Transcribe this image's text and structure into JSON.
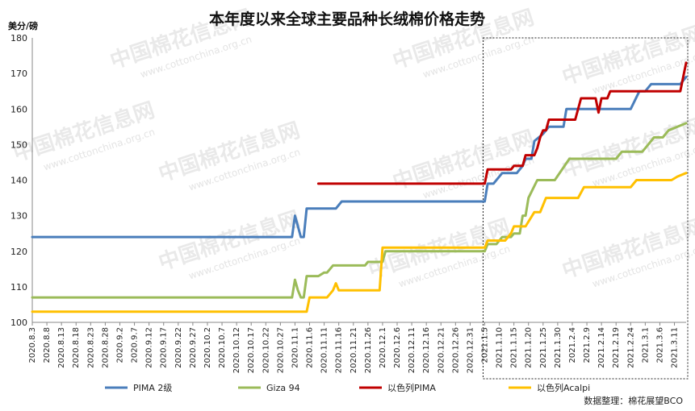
{
  "chart_data": {
    "type": "line",
    "title": "本年度以来全球主要品种长绒棉价格走势",
    "ylabel": "美分/磅",
    "ylim": [
      100,
      180
    ],
    "yticks": [
      100,
      110,
      120,
      130,
      140,
      150,
      160,
      170,
      180
    ],
    "xlabels": [
      "2020.8.3",
      "2020.8.8",
      "2020.8.13",
      "2020.8.18",
      "2020.8.23",
      "2020.8.28",
      "2020.9.2",
      "2020.9.7",
      "2020.9.12",
      "2020.9.17",
      "2020.9.22",
      "2020.9.27",
      "2020.10.2",
      "2020.10.7",
      "2020.10.12",
      "2020.10.17",
      "2020.10.22",
      "2020.10.27",
      "2020.11.1",
      "2020.11.6",
      "2020.11.11",
      "2020.11.16",
      "2020.11.21",
      "2020.11.26",
      "2020.12.1",
      "2020.12.6",
      "2020.12.11",
      "2020.12.16",
      "2020.12.21",
      "2020.12.26",
      "2020.12.31",
      "2021.1.5",
      "2021.1.10",
      "2021.1.15",
      "2021.1.20",
      "2021.1.25",
      "2021.1.30",
      "2021.2.4",
      "2021.2.9",
      "2021.2.14",
      "2021.2.19",
      "2021.2.24",
      "2021.3.1",
      "2021.3.6",
      "2021.3.11"
    ],
    "x_start": "2020.8.3",
    "x_end": "2021.3.15",
    "grid": false,
    "legend": "bottom",
    "highlight": {
      "from": "2021.1.5",
      "to": "2021.3.15",
      "style": "dotted box"
    },
    "series": [
      {
        "name": "PIMA 2级",
        "color": "#4a7ebb",
        "points": [
          [
            "2020.8.3",
            124
          ],
          [
            "2020.10.31",
            124
          ],
          [
            "2020.11.1",
            130
          ],
          [
            "2020.11.2",
            127
          ],
          [
            "2020.11.3",
            124
          ],
          [
            "2020.11.4",
            124
          ],
          [
            "2020.11.5",
            132
          ],
          [
            "2020.11.15",
            132
          ],
          [
            "2020.11.17",
            134
          ],
          [
            "2021.1.5",
            134
          ],
          [
            "2021.1.6",
            139
          ],
          [
            "2021.1.8",
            139
          ],
          [
            "2021.1.10",
            141
          ],
          [
            "2021.1.11",
            142
          ],
          [
            "2021.1.16",
            142
          ],
          [
            "2021.1.18",
            144
          ],
          [
            "2021.1.19",
            146
          ],
          [
            "2021.1.21",
            146
          ],
          [
            "2021.1.22",
            151
          ],
          [
            "2021.1.25",
            153
          ],
          [
            "2021.1.27",
            155
          ],
          [
            "2021.2.1",
            155
          ],
          [
            "2021.2.2",
            160
          ],
          [
            "2021.2.24",
            160
          ],
          [
            "2021.2.27",
            165
          ],
          [
            "2021.3.1",
            165
          ],
          [
            "2021.3.3",
            167
          ],
          [
            "2021.3.13",
            167
          ],
          [
            "2021.3.15",
            169
          ]
        ]
      },
      {
        "name": "Giza 94",
        "color": "#9bbb59",
        "points": [
          [
            "2020.8.3",
            107
          ],
          [
            "2020.10.31",
            107
          ],
          [
            "2020.11.1",
            112
          ],
          [
            "2020.11.2",
            109
          ],
          [
            "2020.11.3",
            107
          ],
          [
            "2020.11.4",
            107
          ],
          [
            "2020.11.5",
            113
          ],
          [
            "2020.11.9",
            113
          ],
          [
            "2020.11.11",
            114
          ],
          [
            "2020.11.12",
            114
          ],
          [
            "2020.11.14",
            116
          ],
          [
            "2020.11.25",
            116
          ],
          [
            "2020.11.26",
            117
          ],
          [
            "2020.12.1",
            117
          ],
          [
            "2020.12.2",
            120
          ],
          [
            "2021.1.5",
            120
          ],
          [
            "2021.1.6",
            122
          ],
          [
            "2021.1.9",
            122
          ],
          [
            "2021.1.11",
            124
          ],
          [
            "2021.1.14",
            124
          ],
          [
            "2021.1.15",
            125
          ],
          [
            "2021.1.17",
            125
          ],
          [
            "2021.1.18",
            130
          ],
          [
            "2021.1.19",
            130
          ],
          [
            "2021.1.20",
            135
          ],
          [
            "2021.1.23",
            140
          ],
          [
            "2021.1.29",
            140
          ],
          [
            "2021.2.3",
            146
          ],
          [
            "2021.2.19",
            146
          ],
          [
            "2021.2.21",
            148
          ],
          [
            "2021.2.28",
            148
          ],
          [
            "2021.3.2",
            150
          ],
          [
            "2021.3.4",
            152
          ],
          [
            "2021.3.7",
            152
          ],
          [
            "2021.3.9",
            154
          ],
          [
            "2021.3.15",
            156
          ]
        ]
      },
      {
        "name": "以色列PIMA",
        "color": "#c00000",
        "points": [
          [
            "2020.11.9",
            139
          ],
          [
            "2021.1.5",
            139
          ],
          [
            "2021.1.6",
            143
          ],
          [
            "2021.1.14",
            143
          ],
          [
            "2021.1.15",
            144
          ],
          [
            "2021.1.18",
            144
          ],
          [
            "2021.1.19",
            147
          ],
          [
            "2021.1.22",
            147
          ],
          [
            "2021.1.23",
            149
          ],
          [
            "2021.1.24",
            152
          ],
          [
            "2021.1.25",
            154
          ],
          [
            "2021.1.26",
            154
          ],
          [
            "2021.1.27",
            157
          ],
          [
            "2021.2.5",
            157
          ],
          [
            "2021.2.7",
            163
          ],
          [
            "2021.2.12",
            163
          ],
          [
            "2021.2.13",
            159
          ],
          [
            "2021.2.14",
            163
          ],
          [
            "2021.2.16",
            163
          ],
          [
            "2021.2.17",
            165
          ],
          [
            "2021.3.13",
            165
          ],
          [
            "2021.3.15",
            173
          ]
        ]
      },
      {
        "name": "以色列Acalpi",
        "color": "#ffc000",
        "points": [
          [
            "2020.8.3",
            103
          ],
          [
            "2020.11.5",
            103
          ],
          [
            "2020.11.6",
            107
          ],
          [
            "2020.11.12",
            107
          ],
          [
            "2020.11.14",
            109
          ],
          [
            "2020.11.15",
            111
          ],
          [
            "2020.11.16",
            109
          ],
          [
            "2020.11.30",
            109
          ],
          [
            "2020.12.1",
            121
          ],
          [
            "2021.1.5",
            121
          ],
          [
            "2021.1.6",
            123
          ],
          [
            "2021.1.12",
            123
          ],
          [
            "2021.1.14",
            125
          ],
          [
            "2021.1.15",
            127
          ],
          [
            "2021.1.19",
            127
          ],
          [
            "2021.1.22",
            131
          ],
          [
            "2021.1.24",
            131
          ],
          [
            "2021.1.26",
            135
          ],
          [
            "2021.2.6",
            135
          ],
          [
            "2021.2.8",
            138
          ],
          [
            "2021.2.24",
            138
          ],
          [
            "2021.2.26",
            140
          ],
          [
            "2021.3.10",
            140
          ],
          [
            "2021.3.12",
            141
          ],
          [
            "2021.3.15",
            142
          ]
        ]
      }
    ]
  },
  "watermark": {
    "brand_cn": "中国棉花信息网",
    "url": "www.cottonchina.org.cn"
  },
  "source_note": "数据整理：棉花展望BCO"
}
